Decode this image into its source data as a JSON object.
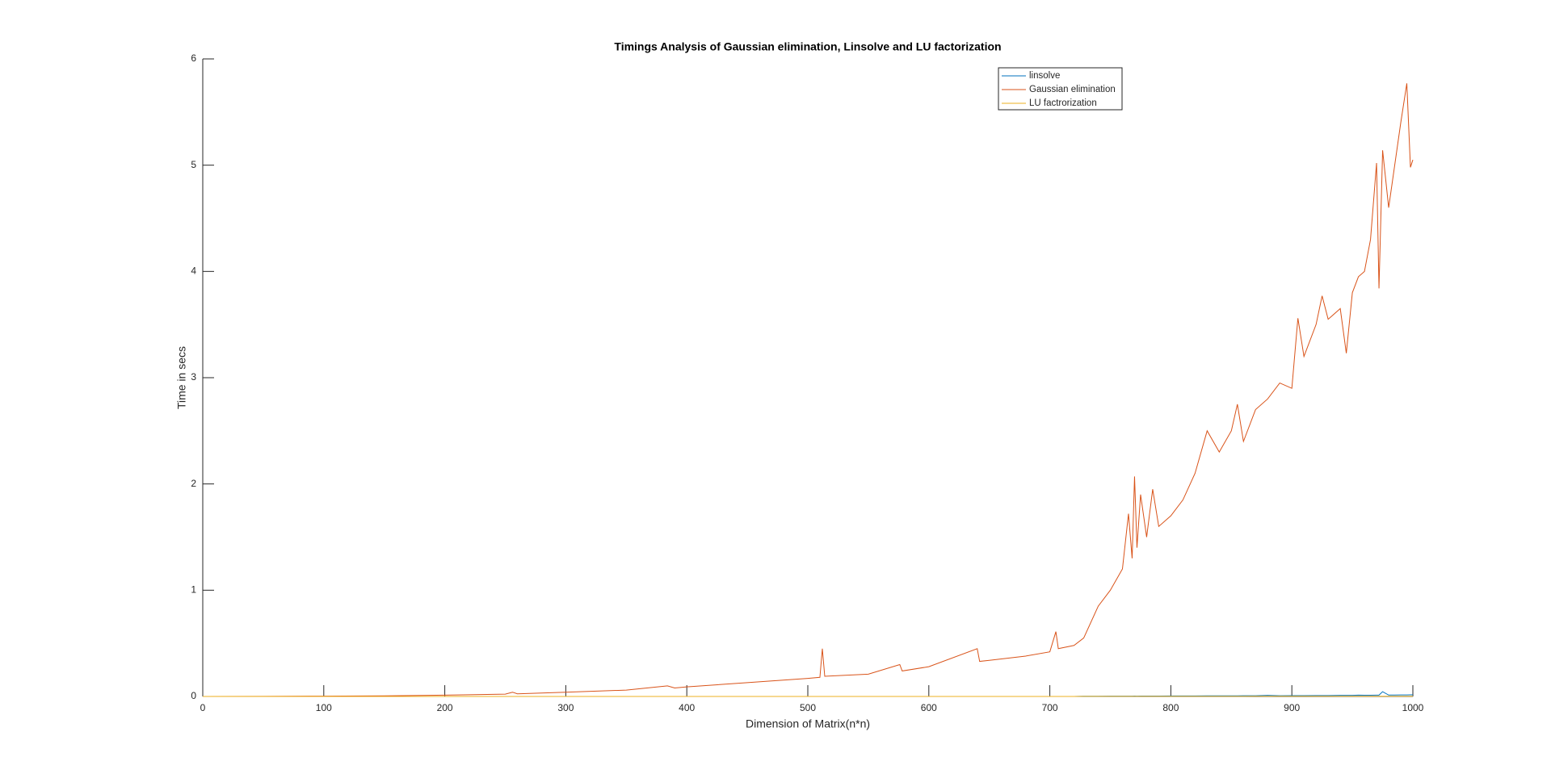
{
  "chart_data": {
    "type": "line",
    "title": "Timings Analysis of Gaussian elimination, Linsolve and LU factorization",
    "xlabel": "Dimension of Matrix(n*n)",
    "ylabel": "Time in secs",
    "x": [
      0,
      50,
      100,
      150,
      200,
      250,
      256,
      260,
      300,
      350,
      384,
      390,
      400,
      450,
      500,
      510,
      512,
      514,
      550,
      576,
      578,
      600,
      640,
      642,
      650,
      680,
      700,
      705,
      707,
      720,
      728,
      740,
      750,
      760,
      765,
      768,
      770,
      772,
      775,
      780,
      785,
      790,
      800,
      810,
      820,
      830,
      840,
      850,
      855,
      860,
      870,
      880,
      890,
      900,
      905,
      910,
      920,
      925,
      930,
      940,
      945,
      950,
      955,
      960,
      965,
      970,
      972,
      975,
      980,
      985,
      990,
      995,
      998,
      1000
    ],
    "series": [
      {
        "name": "linsolve",
        "color": "#0072BD",
        "values": [
          0,
          0,
          0,
          0,
          0,
          0,
          0,
          0,
          0,
          0,
          0,
          0,
          0,
          0,
          0,
          0,
          0,
          0,
          0,
          0,
          0,
          0,
          0,
          0,
          0,
          0,
          0,
          0,
          0,
          0,
          0.002,
          0.002,
          0.003,
          0.003,
          0.003,
          0.003,
          0.004,
          0.003,
          0.004,
          0.004,
          0.004,
          0.004,
          0.005,
          0.005,
          0.005,
          0.006,
          0.006,
          0.006,
          0.006,
          0.007,
          0.007,
          0.01,
          0.007,
          0.008,
          0.008,
          0.008,
          0.009,
          0.009,
          0.009,
          0.01,
          0.01,
          0.01,
          0.012,
          0.011,
          0.011,
          0.012,
          0.012,
          0.045,
          0.013,
          0.013,
          0.014,
          0.014,
          0.015,
          0.015
        ]
      },
      {
        "name": "Gaussian elimination",
        "color": "#D95319",
        "values": [
          0,
          0.001,
          0.003,
          0.006,
          0.012,
          0.022,
          0.04,
          0.025,
          0.04,
          0.06,
          0.1,
          0.08,
          0.09,
          0.13,
          0.17,
          0.18,
          0.45,
          0.19,
          0.21,
          0.3,
          0.24,
          0.28,
          0.45,
          0.33,
          0.34,
          0.38,
          0.42,
          0.61,
          0.45,
          0.48,
          0.55,
          0.85,
          1.0,
          1.2,
          1.72,
          1.3,
          2.07,
          1.4,
          1.9,
          1.5,
          1.95,
          1.6,
          1.7,
          1.85,
          2.1,
          2.5,
          2.3,
          2.5,
          2.75,
          2.4,
          2.7,
          2.8,
          2.95,
          2.9,
          3.56,
          3.2,
          3.5,
          3.77,
          3.55,
          3.65,
          3.23,
          3.8,
          3.95,
          4.0,
          4.3,
          5.02,
          3.84,
          5.14,
          4.6,
          5.0,
          5.4,
          5.77,
          4.98,
          5.05
        ]
      },
      {
        "name": "LU factrorization",
        "color": "#EDB120",
        "values": [
          0,
          0,
          0,
          0,
          0,
          0,
          0,
          0,
          0,
          0,
          0,
          0,
          0,
          0,
          0,
          0,
          0,
          0,
          0,
          0,
          0,
          0,
          0,
          0,
          0,
          0,
          0,
          0,
          0,
          0,
          0.001,
          0.001,
          0.001,
          0.001,
          0.001,
          0.001,
          0.001,
          0.001,
          0.001,
          0.001,
          0.001,
          0.001,
          0.001,
          0.001,
          0.001,
          0.001,
          0.001,
          0.001,
          0.001,
          0.001,
          0.002,
          0.002,
          0.002,
          0.002,
          0.002,
          0.002,
          0.002,
          0.002,
          0.002,
          0.002,
          0.002,
          0.002,
          0.002,
          0.002,
          0.002,
          0.002,
          0.002,
          0.002,
          0.002,
          0.002,
          0.002,
          0.002,
          0.002,
          0.002
        ]
      }
    ],
    "xlim": [
      0,
      1000
    ],
    "xticks": [
      0,
      100,
      200,
      300,
      400,
      500,
      600,
      700,
      800,
      900,
      1000
    ],
    "ylim": [
      0,
      6
    ],
    "yticks": [
      0,
      1,
      2,
      3,
      4,
      5,
      6
    ],
    "legend": "top-right"
  }
}
